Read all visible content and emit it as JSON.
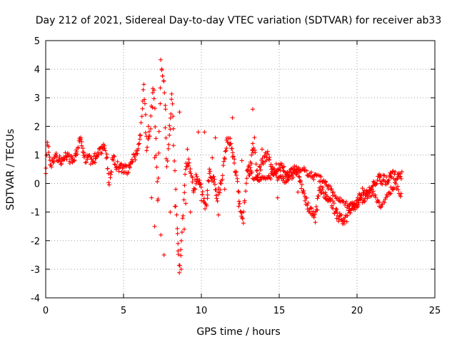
{
  "chart_data": {
    "type": "scatter",
    "title": "Day 212 of 2021, Sidereal Day-to-day VTEC variation (SDTVAR) for receiver ab33",
    "xlabel": "GPS time / hours",
    "ylabel": "SDTVAR / TECUs",
    "xlim": [
      0,
      25
    ],
    "ylim": [
      -4,
      5
    ],
    "xticks": [
      0,
      5,
      10,
      15,
      20,
      25
    ],
    "yticks": [
      -4,
      -3,
      -2,
      -1,
      0,
      1,
      2,
      3,
      4,
      5
    ],
    "grid": true,
    "marker": "+",
    "color": "#ff0000",
    "series": [
      {
        "name": "SDTVAR",
        "trace": [
          [
            0.0,
            0.2
          ],
          [
            0.1,
            1.4
          ],
          [
            0.3,
            0.6
          ],
          [
            0.6,
            1.0
          ],
          [
            1.0,
            0.7
          ],
          [
            1.3,
            1.0
          ],
          [
            1.6,
            0.8
          ],
          [
            2.0,
            1.1
          ],
          [
            2.2,
            1.6
          ],
          [
            2.5,
            0.9
          ],
          [
            3.0,
            0.8
          ],
          [
            3.5,
            1.1
          ],
          [
            3.8,
            1.3
          ],
          [
            4.0,
            0.5
          ],
          [
            4.1,
            -0.1
          ],
          [
            4.3,
            0.9
          ],
          [
            4.6,
            0.6
          ],
          [
            5.0,
            0.5
          ],
          [
            5.3,
            0.5
          ],
          [
            5.6,
            0.9
          ],
          [
            5.9,
            1.0
          ],
          [
            6.1,
            1.7
          ],
          [
            6.3,
            3.4
          ],
          [
            6.5,
            1.2
          ],
          [
            6.7,
            1.8
          ],
          [
            6.9,
            3.3
          ],
          [
            7.0,
            2.7
          ],
          [
            7.1,
            1.0
          ],
          [
            7.2,
            -0.5
          ],
          [
            7.4,
            4.2
          ],
          [
            7.6,
            3.6
          ],
          [
            7.8,
            0.5
          ],
          [
            8.1,
            3.2
          ],
          [
            8.2,
            2.0
          ],
          [
            8.4,
            -1.2
          ],
          [
            8.6,
            -3.2
          ],
          [
            8.7,
            -2.2
          ],
          [
            8.8,
            -1.3
          ],
          [
            9.0,
            0.5
          ],
          [
            9.2,
            0.8
          ],
          [
            9.5,
            -0.3
          ],
          [
            9.7,
            0.3
          ],
          [
            10.0,
            -0.2
          ],
          [
            10.3,
            -0.9
          ],
          [
            10.5,
            0.4
          ],
          [
            10.8,
            0.2
          ],
          [
            11.0,
            -0.5
          ],
          [
            11.3,
            0.0
          ],
          [
            11.6,
            1.4
          ],
          [
            11.9,
            1.5
          ],
          [
            12.1,
            0.7
          ],
          [
            12.3,
            0.2
          ],
          [
            12.5,
            -0.9
          ],
          [
            12.7,
            -1.3
          ],
          [
            12.9,
            0.3
          ],
          [
            13.1,
            0.5
          ],
          [
            13.4,
            1.5
          ],
          [
            13.6,
            0.1
          ],
          [
            13.8,
            0.6
          ],
          [
            14.0,
            0.9
          ],
          [
            14.3,
            1.0
          ],
          [
            14.6,
            0.4
          ],
          [
            15.0,
            0.6
          ],
          [
            15.3,
            0.5
          ],
          [
            15.6,
            0.2
          ],
          [
            16.0,
            0.6
          ],
          [
            16.3,
            0.2
          ],
          [
            16.6,
            -0.4
          ],
          [
            17.0,
            -1.0
          ],
          [
            17.3,
            -1.2
          ],
          [
            17.6,
            -0.2
          ],
          [
            18.0,
            -0.4
          ],
          [
            18.4,
            -0.7
          ],
          [
            18.8,
            -1.2
          ],
          [
            19.2,
            -1.3
          ],
          [
            19.6,
            -0.9
          ],
          [
            20.0,
            -0.7
          ],
          [
            20.3,
            -0.3
          ],
          [
            20.6,
            -0.4
          ],
          [
            21.0,
            -0.1
          ],
          [
            21.4,
            0.2
          ],
          [
            21.8,
            0.1
          ],
          [
            22.2,
            0.3
          ],
          [
            22.6,
            0.2
          ],
          [
            22.9,
            0.3
          ]
        ],
        "trace2": [
          [
            13.0,
            0.4
          ],
          [
            13.5,
            0.2
          ],
          [
            14.0,
            0.1
          ],
          [
            14.5,
            0.3
          ],
          [
            15.0,
            0.2
          ],
          [
            15.5,
            0.1
          ],
          [
            16.0,
            0.4
          ],
          [
            16.5,
            0.5
          ],
          [
            17.0,
            0.3
          ],
          [
            17.5,
            0.2
          ],
          [
            18.0,
            0.0
          ],
          [
            18.5,
            -0.4
          ],
          [
            19.0,
            -0.6
          ],
          [
            19.5,
            -0.8
          ],
          [
            20.0,
            -0.7
          ],
          [
            20.5,
            -0.5
          ],
          [
            21.0,
            -0.3
          ],
          [
            21.5,
            -0.9
          ],
          [
            22.0,
            -0.4
          ],
          [
            22.5,
            0.0
          ],
          [
            22.9,
            -0.5
          ]
        ],
        "scatter": [
          [
            7.2,
            -0.6
          ],
          [
            7.0,
            -1.5
          ],
          [
            7.4,
            -1.8
          ],
          [
            7.6,
            -2.5
          ],
          [
            8.0,
            -1.0
          ],
          [
            8.3,
            -0.8
          ],
          [
            9.3,
            -1.0
          ],
          [
            9.6,
            -0.2
          ],
          [
            10.0,
            -0.6
          ],
          [
            10.4,
            -0.4
          ],
          [
            10.2,
            1.8
          ],
          [
            11.5,
            -0.2
          ],
          [
            12.0,
            2.3
          ],
          [
            12.6,
            0.8
          ],
          [
            13.3,
            2.6
          ],
          [
            13.3,
            1.4
          ],
          [
            8.6,
            2.5
          ],
          [
            7.0,
            0.9
          ],
          [
            9.8,
            1.8
          ],
          [
            10.9,
            1.6
          ],
          [
            6.8,
            -0.5
          ],
          [
            8.9,
            -1.6
          ],
          [
            9.0,
            -0.7
          ],
          [
            14.9,
            -0.5
          ],
          [
            16.2,
            -0.3
          ],
          [
            12.4,
            -0.8
          ],
          [
            11.1,
            -1.1
          ],
          [
            8.0,
            1.9
          ],
          [
            10.7,
            0.9
          ],
          [
            13.9,
            1.2
          ],
          [
            7.7,
            2.6
          ],
          [
            6.6,
            2.0
          ],
          [
            9.1,
            1.2
          ],
          [
            8.5,
            -2.1
          ],
          [
            8.7,
            -3.0
          ]
        ]
      }
    ]
  }
}
